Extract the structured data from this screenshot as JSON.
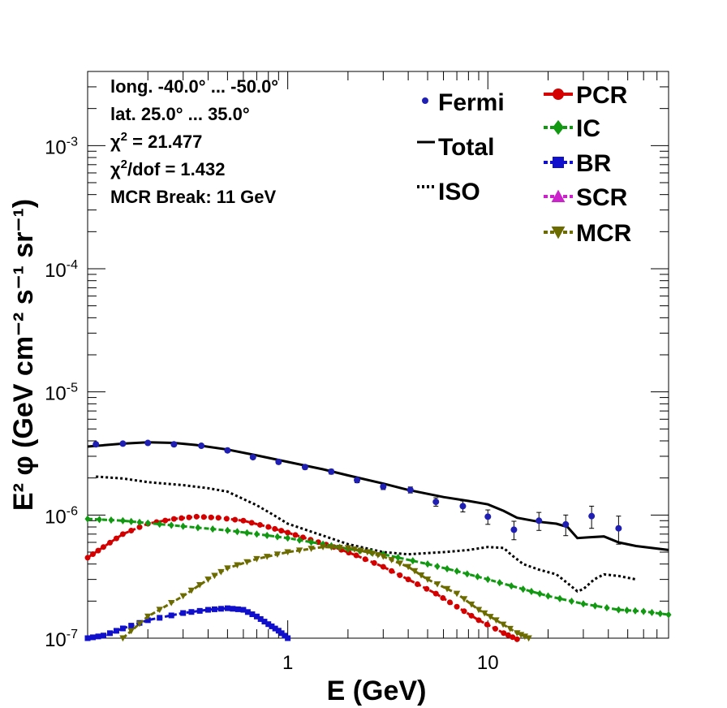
{
  "chart_data": {
    "type": "line",
    "xlabel": "E (GeV)",
    "ylabel": "E² φ (GeV cm⁻² s⁻¹ sr⁻¹)",
    "xscale": "log",
    "yscale": "log",
    "xlim": [
      0.1,
      80
    ],
    "ylim": [
      1e-07,
      0.004
    ],
    "x_tick_labels": [
      {
        "value": 1,
        "label": "1"
      },
      {
        "value": 10,
        "label": "10"
      }
    ],
    "y_tick_labels": [
      {
        "value": 1e-07,
        "base": "10",
        "exp": "-7"
      },
      {
        "value": 1e-06,
        "base": "10",
        "exp": "-6"
      },
      {
        "value": 1e-05,
        "base": "10",
        "exp": "-5"
      },
      {
        "value": 0.0001,
        "base": "10",
        "exp": "-4"
      },
      {
        "value": 0.001,
        "base": "10",
        "exp": "-3"
      }
    ],
    "info": [
      "long. -40.0° ... -50.0°",
      "lat. 25.0° ... 35.0°",
      "χ² = 21.477",
      "χ²/dof = 1.432",
      "MCR Break: 11 GeV"
    ],
    "legend_left": [
      {
        "label": "Fermi",
        "series": "Fermi"
      },
      {
        "label": "Total",
        "series": "Total"
      },
      {
        "label": "ISO",
        "series": "ISO"
      }
    ],
    "legend_right": [
      {
        "label": "PCR",
        "series": "PCR"
      },
      {
        "label": "IC",
        "series": "IC"
      },
      {
        "label": "BR",
        "series": "BR"
      },
      {
        "label": "SCR",
        "series": "SCR"
      },
      {
        "label": "MCR",
        "series": "MCR"
      }
    ],
    "colors": {
      "Fermi": "#1f1fb4",
      "Total": "#000000",
      "ISO": "#000000",
      "PCR": "#d40000",
      "IC": "#119911",
      "BR": "#1010cc",
      "SCR": "#cc22cc",
      "MCR": "#6b6b00"
    },
    "fermi": {
      "name": "Fermi",
      "points": [
        {
          "x": 0.11,
          "y": 3.75e-06,
          "err": 1.2e-07
        },
        {
          "x": 0.15,
          "y": 3.8e-06,
          "err": 1.2e-07
        },
        {
          "x": 0.2,
          "y": 3.85e-06,
          "err": 1.2e-07
        },
        {
          "x": 0.27,
          "y": 3.75e-06,
          "err": 1.2e-07
        },
        {
          "x": 0.37,
          "y": 3.65e-06,
          "err": 1.2e-07
        },
        {
          "x": 0.5,
          "y": 3.35e-06,
          "err": 1.2e-07
        },
        {
          "x": 0.67,
          "y": 2.95e-06,
          "err": 1e-07
        },
        {
          "x": 0.9,
          "y": 2.7e-06,
          "err": 1e-07
        },
        {
          "x": 1.22,
          "y": 2.45e-06,
          "err": 1e-07
        },
        {
          "x": 1.65,
          "y": 2.25e-06,
          "err": 1e-07
        },
        {
          "x": 2.22,
          "y": 1.92e-06,
          "err": 9e-08
        },
        {
          "x": 3.0,
          "y": 1.7e-06,
          "err": 9e-08
        },
        {
          "x": 4.1,
          "y": 1.6e-06,
          "err": 9e-08
        },
        {
          "x": 5.5,
          "y": 1.28e-06,
          "err": 1e-07
        },
        {
          "x": 7.5,
          "y": 1.18e-06,
          "err": 1.2e-07
        },
        {
          "x": 10.0,
          "y": 9.7e-07,
          "err": 1.3e-07
        },
        {
          "x": 13.5,
          "y": 7.6e-07,
          "err": 1.3e-07
        },
        {
          "x": 18.0,
          "y": 9e-07,
          "err": 1.5e-07
        },
        {
          "x": 24.5,
          "y": 8.4e-07,
          "err": 1.6e-07
        },
        {
          "x": 33.0,
          "y": 9.8e-07,
          "err": 2e-07
        },
        {
          "x": 45.0,
          "y": 7.8e-07,
          "err": 2e-07
        }
      ]
    },
    "series": [
      {
        "name": "Total",
        "style": "solid",
        "points": [
          [
            0.1,
            3.6e-06
          ],
          [
            0.15,
            3.8e-06
          ],
          [
            0.2,
            3.9e-06
          ],
          [
            0.27,
            3.85e-06
          ],
          [
            0.35,
            3.7e-06
          ],
          [
            0.5,
            3.4e-06
          ],
          [
            0.7,
            3.05e-06
          ],
          [
            1.0,
            2.7e-06
          ],
          [
            1.5,
            2.35e-06
          ],
          [
            2.0,
            2.1e-06
          ],
          [
            3.0,
            1.8e-06
          ],
          [
            4.0,
            1.6e-06
          ],
          [
            6.0,
            1.4e-06
          ],
          [
            8.0,
            1.3e-06
          ],
          [
            10.0,
            1.22e-06
          ],
          [
            12.0,
            1.08e-06
          ],
          [
            14.0,
            9.5e-07
          ],
          [
            18.0,
            8.8e-07
          ],
          [
            22.0,
            8.5e-07
          ],
          [
            25.0,
            8e-07
          ],
          [
            28.0,
            6.5e-07
          ],
          [
            32.0,
            6.6e-07
          ],
          [
            38.0,
            6.7e-07
          ],
          [
            45.0,
            6e-07
          ],
          [
            55.0,
            5.6e-07
          ],
          [
            80.0,
            5.2e-07
          ]
        ]
      },
      {
        "name": "ISO",
        "style": "dotted",
        "points": [
          [
            0.11,
            2.05e-06
          ],
          [
            0.15,
            1.98e-06
          ],
          [
            0.2,
            1.85e-06
          ],
          [
            0.3,
            1.75e-06
          ],
          [
            0.4,
            1.65e-06
          ],
          [
            0.5,
            1.55e-06
          ],
          [
            0.7,
            1.2e-06
          ],
          [
            0.85,
            1e-06
          ],
          [
            1.0,
            8.5e-07
          ],
          [
            1.5,
            6.8e-07
          ],
          [
            2.0,
            5.8e-07
          ],
          [
            3.0,
            5e-07
          ],
          [
            4.0,
            4.8e-07
          ],
          [
            6.0,
            5e-07
          ],
          [
            8.0,
            5.2e-07
          ],
          [
            10.0,
            5.5e-07
          ],
          [
            12.0,
            5.4e-07
          ],
          [
            13.0,
            4.8e-07
          ],
          [
            15.0,
            4e-07
          ],
          [
            18.0,
            3.6e-07
          ],
          [
            22.0,
            3.3e-07
          ],
          [
            25.0,
            2.8e-07
          ],
          [
            28.0,
            2.4e-07
          ],
          [
            30.0,
            2.5e-07
          ],
          [
            34.0,
            3e-07
          ],
          [
            38.0,
            3.3e-07
          ],
          [
            45.0,
            3.2e-07
          ],
          [
            55.0,
            3e-07
          ]
        ]
      },
      {
        "name": "PCR",
        "style": "dashed-marker",
        "marker": "circle",
        "points": [
          [
            0.1,
            4.5e-07
          ],
          [
            0.12,
            5.5e-07
          ],
          [
            0.15,
            7e-07
          ],
          [
            0.2,
            8.5e-07
          ],
          [
            0.27,
            9.3e-07
          ],
          [
            0.35,
            9.7e-07
          ],
          [
            0.45,
            9.5e-07
          ],
          [
            0.6,
            9e-07
          ],
          [
            0.8,
            8e-07
          ],
          [
            1.0,
            7.2e-07
          ],
          [
            1.3,
            6.3e-07
          ],
          [
            1.7,
            5.5e-07
          ],
          [
            2.2,
            4.7e-07
          ],
          [
            3.0,
            3.8e-07
          ],
          [
            4.0,
            3e-07
          ],
          [
            5.5,
            2.3e-07
          ],
          [
            7.0,
            1.8e-07
          ],
          [
            9.0,
            1.4e-07
          ],
          [
            12.0,
            1.1e-07
          ],
          [
            14.0,
            9.8e-08
          ]
        ]
      },
      {
        "name": "IC",
        "style": "dashed-marker",
        "marker": "cross",
        "points": [
          [
            0.1,
            9.3e-07
          ],
          [
            0.15,
            9e-07
          ],
          [
            0.2,
            8.6e-07
          ],
          [
            0.3,
            8.1e-07
          ],
          [
            0.5,
            7.5e-07
          ],
          [
            0.7,
            7e-07
          ],
          [
            1.0,
            6.5e-07
          ],
          [
            1.5,
            5.8e-07
          ],
          [
            2.0,
            5.3e-07
          ],
          [
            3.0,
            4.8e-07
          ],
          [
            5.0,
            4e-07
          ],
          [
            7.0,
            3.5e-07
          ],
          [
            10.0,
            3e-07
          ],
          [
            15.0,
            2.5e-07
          ],
          [
            20.0,
            2.2e-07
          ],
          [
            30.0,
            1.9e-07
          ],
          [
            45.0,
            1.7e-07
          ],
          [
            60.0,
            1.65e-07
          ],
          [
            80.0,
            1.55e-07
          ]
        ]
      },
      {
        "name": "BR",
        "style": "dashed-marker",
        "marker": "square",
        "points": [
          [
            0.1,
            1e-07
          ],
          [
            0.12,
            1.05e-07
          ],
          [
            0.15,
            1.2e-07
          ],
          [
            0.2,
            1.4e-07
          ],
          [
            0.3,
            1.6e-07
          ],
          [
            0.4,
            1.7e-07
          ],
          [
            0.5,
            1.75e-07
          ],
          [
            0.6,
            1.7e-07
          ],
          [
            0.7,
            1.5e-07
          ],
          [
            0.8,
            1.3e-07
          ],
          [
            0.9,
            1.15e-07
          ],
          [
            1.0,
            1e-07
          ]
        ]
      },
      {
        "name": "MCR",
        "style": "dashed-marker",
        "marker": "triangle-down",
        "points": [
          [
            0.15,
            1e-07
          ],
          [
            0.2,
            1.5e-07
          ],
          [
            0.3,
            2.2e-07
          ],
          [
            0.4,
            3e-07
          ],
          [
            0.5,
            3.7e-07
          ],
          [
            0.7,
            4.4e-07
          ],
          [
            1.0,
            5e-07
          ],
          [
            1.5,
            5.5e-07
          ],
          [
            2.0,
            5.4e-07
          ],
          [
            2.5,
            5e-07
          ],
          [
            3.0,
            4.6e-07
          ],
          [
            4.0,
            3.8e-07
          ],
          [
            5.0,
            3e-07
          ],
          [
            7.0,
            2.3e-07
          ],
          [
            9.0,
            1.7e-07
          ],
          [
            11.0,
            1.4e-07
          ],
          [
            14.0,
            1.1e-07
          ],
          [
            16.0,
            1e-07
          ]
        ]
      }
    ]
  }
}
